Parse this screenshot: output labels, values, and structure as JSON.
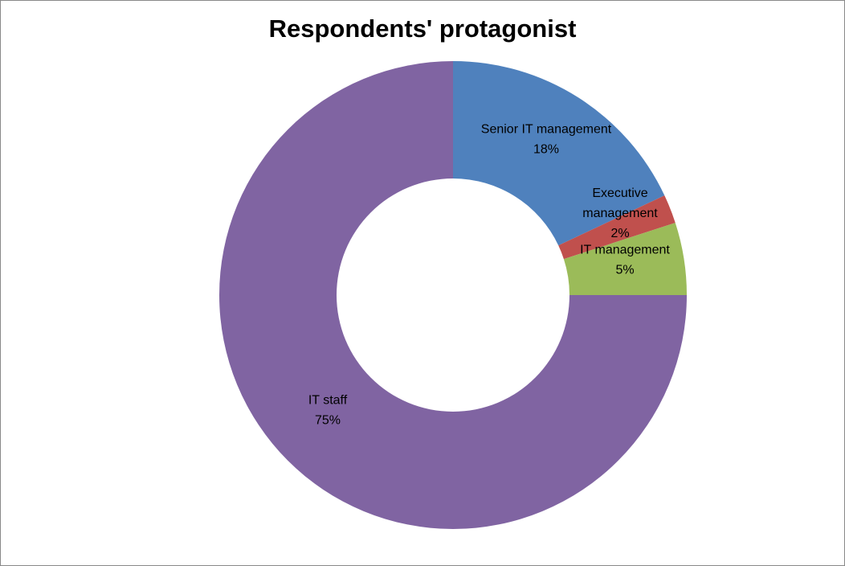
{
  "chart_data": {
    "type": "pie",
    "variant": "doughnut",
    "title": "Respondents' protagonist",
    "legend": "none",
    "slices": [
      {
        "label": "Senior IT management",
        "value": 18,
        "display": "18%",
        "color": "#4f81bd"
      },
      {
        "label": "Executive management",
        "value": 2,
        "display": "2%",
        "color": "#c0504d"
      },
      {
        "label": "IT management",
        "value": 5,
        "display": "5%",
        "color": "#9bbb59"
      },
      {
        "label": "IT staff",
        "value": 75,
        "display": "75%",
        "color": "#8064a2"
      }
    ]
  }
}
